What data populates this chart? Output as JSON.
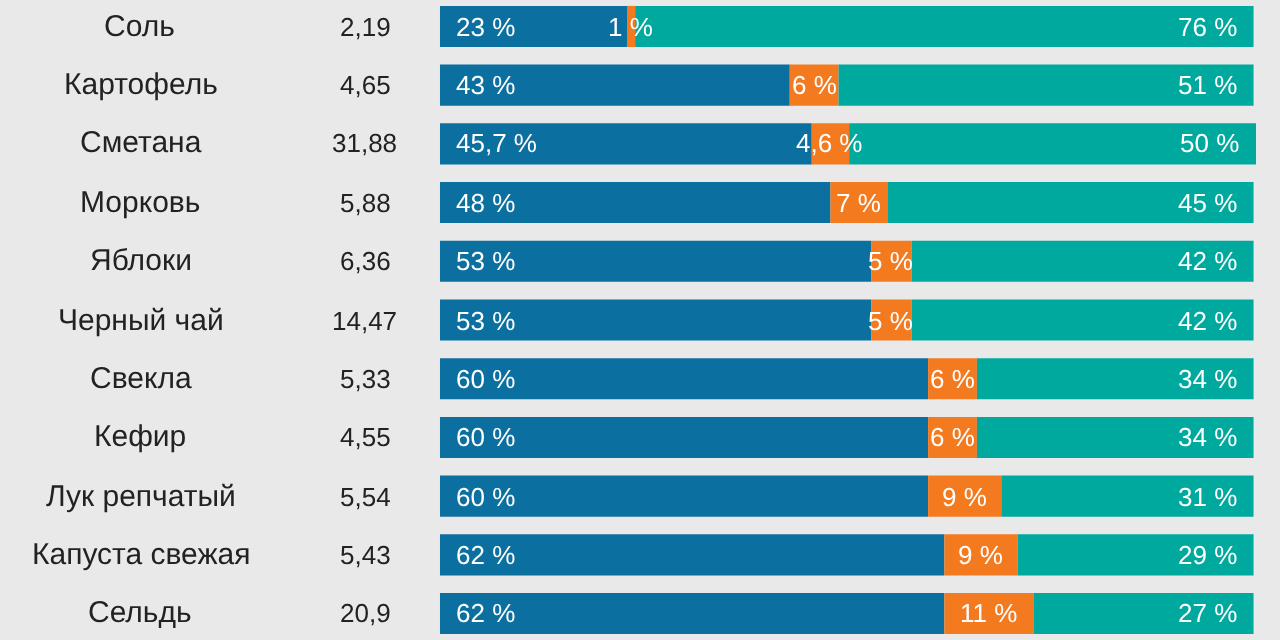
{
  "chart_data": {
    "type": "bar",
    "orientation": "horizontal",
    "stacked": true,
    "categories": [
      "Соль",
      "Картофель",
      "Сметана",
      "Морковь",
      "Яблоки",
      "Черный чай",
      "Свекла",
      "Кефир",
      "Лук репчатый",
      "Капуста свежая",
      "Сельдь"
    ],
    "annotations": [
      "2,19",
      "4,65",
      "31,88",
      "5,88",
      "6,36",
      "14,47",
      "5,33",
      "4,55",
      "5,54",
      "5,43",
      "20,9"
    ],
    "series": [
      {
        "color": "#0b6f9f",
        "values": [
          23,
          43,
          45.7,
          48,
          53,
          53,
          60,
          60,
          60,
          62,
          62
        ],
        "value_labels": [
          "23 %",
          "43 %",
          "45,7 %",
          "48 %",
          "53 %",
          "53 %",
          "60 %",
          "60 %",
          "60 %",
          "62 %",
          "62 %"
        ]
      },
      {
        "color": "#f47a20",
        "values": [
          1,
          6,
          4.6,
          7,
          5,
          5,
          6,
          6,
          9,
          9,
          11
        ],
        "value_labels": [
          "1 %",
          "6 %",
          "4,6 %",
          "7 %",
          "5 %",
          "5 %",
          "6 %",
          "6 %",
          "9 %",
          "9 %",
          "11 %"
        ]
      },
      {
        "color": "#00a99d",
        "values": [
          76,
          51,
          50,
          45,
          42,
          42,
          34,
          34,
          31,
          29,
          27
        ],
        "value_labels": [
          "76 %",
          "51 %",
          "50 %",
          "45 %",
          "42 %",
          "42 %",
          "34 %",
          "34 %",
          "31 %",
          "29 %",
          "27 %"
        ]
      }
    ],
    "grid": false
  }
}
